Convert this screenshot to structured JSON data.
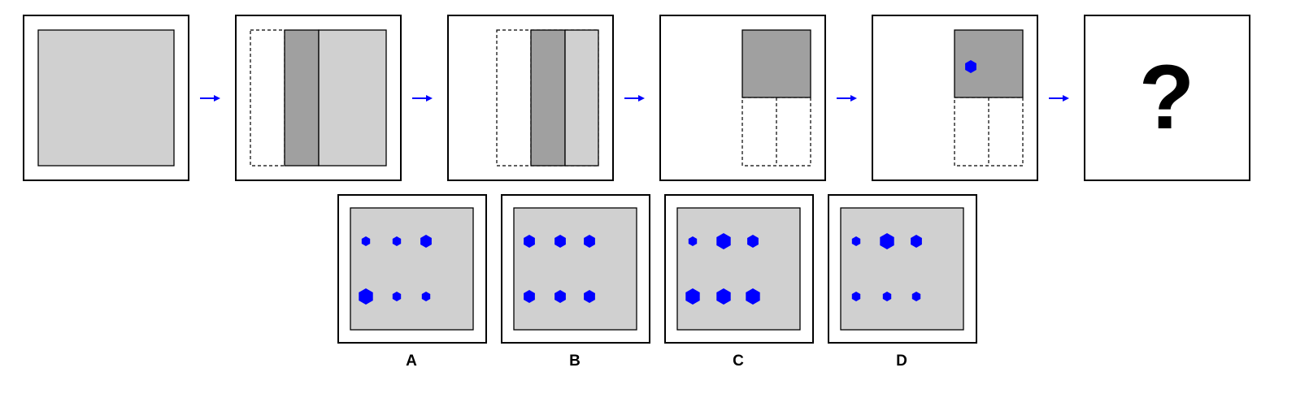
{
  "colors": {
    "shape": "#0000ff",
    "panel_light": "#d0d0d0",
    "panel_dark": "#a0a0a0",
    "frame": "#000000"
  },
  "sequence": {
    "panel_count": 6,
    "question_mark": "?"
  },
  "options": [
    {
      "label": "A",
      "rows": [
        [
          "small",
          "small",
          "medium"
        ],
        [
          "large",
          "small",
          "small"
        ]
      ]
    },
    {
      "label": "B",
      "rows": [
        [
          "medium",
          "medium",
          "medium"
        ],
        [
          "medium",
          "medium",
          "medium"
        ]
      ]
    },
    {
      "label": "C",
      "rows": [
        [
          "small",
          "large",
          "medium"
        ],
        [
          "large",
          "large",
          "large"
        ]
      ]
    },
    {
      "label": "D",
      "rows": [
        [
          "small",
          "large",
          "medium"
        ],
        [
          "small",
          "small",
          "small"
        ]
      ]
    }
  ]
}
